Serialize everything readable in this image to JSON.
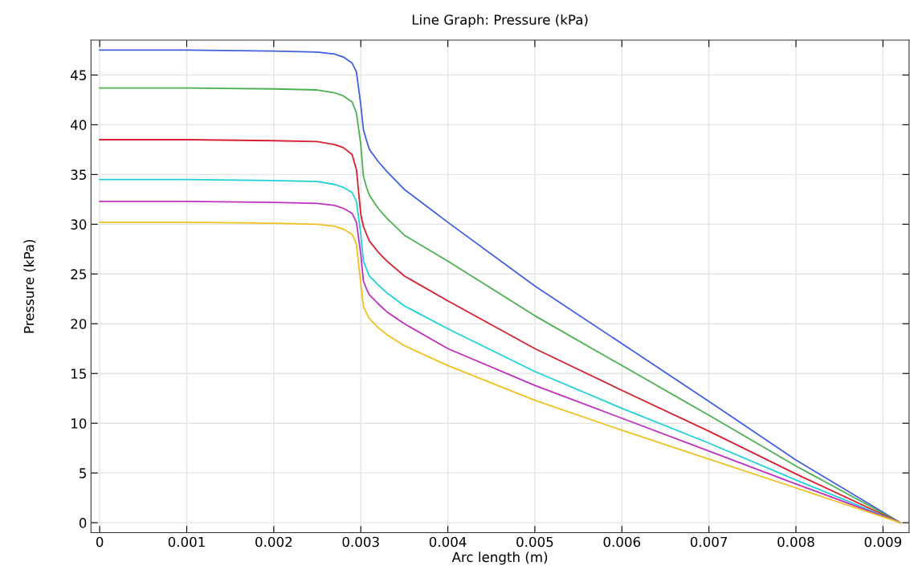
{
  "chart_data": {
    "type": "line",
    "title": "Line Graph: Pressure (kPa)",
    "xlabel": "Arc length (m)",
    "ylabel": "Pressure (kPa)",
    "x": [
      0,
      0.001,
      0.002,
      0.0025,
      0.0027,
      0.0028,
      0.0029,
      0.00295,
      0.003,
      0.00303,
      0.00307,
      0.0031,
      0.0032,
      0.0033,
      0.0035,
      0.004,
      0.005,
      0.006,
      0.007,
      0.008,
      0.0092
    ],
    "series": [
      {
        "color": "#4060e0",
        "values": [
          47.5,
          47.5,
          47.4,
          47.3,
          47.1,
          46.8,
          46.2,
          45.3,
          42,
          39.5,
          38.3,
          37.5,
          36.3,
          35.3,
          33.5,
          30.2,
          23.8,
          18.0,
          12.2,
          6.3,
          0
        ]
      },
      {
        "color": "#4cb050",
        "values": [
          43.7,
          43.7,
          43.6,
          43.5,
          43.2,
          42.9,
          42.3,
          41.2,
          38,
          34.8,
          33.6,
          32.9,
          31.6,
          30.6,
          28.9,
          26.3,
          20.8,
          15.8,
          10.8,
          5.7,
          0
        ]
      },
      {
        "color": "#d62030",
        "values": [
          38.5,
          38.5,
          38.4,
          38.3,
          38.0,
          37.7,
          37.0,
          35.5,
          31,
          29.8,
          28.9,
          28.3,
          27.2,
          26.3,
          24.8,
          22.3,
          17.5,
          13.3,
          9.2,
          4.9,
          0
        ]
      },
      {
        "color": "#20d0d8",
        "values": [
          34.5,
          34.5,
          34.4,
          34.3,
          34.0,
          33.7,
          33.2,
          32.3,
          29,
          26.3,
          25.4,
          24.8,
          23.9,
          23.1,
          21.8,
          19.5,
          15.2,
          11.5,
          8.0,
          4.3,
          0
        ]
      },
      {
        "color": "#c030c0",
        "values": [
          32.3,
          32.3,
          32.2,
          32.1,
          31.9,
          31.6,
          31.1,
          30.2,
          27,
          24.3,
          23.4,
          22.9,
          22.0,
          21.2,
          20.0,
          17.5,
          13.8,
          10.5,
          7.2,
          3.9,
          0
        ]
      },
      {
        "color": "#f0c020",
        "values": [
          30.2,
          30.2,
          30.1,
          30.0,
          29.8,
          29.5,
          29.0,
          28.0,
          24,
          21.7,
          21.0,
          20.5,
          19.6,
          18.9,
          17.8,
          15.8,
          12.3,
          9.3,
          6.4,
          3.5,
          0
        ]
      }
    ],
    "xlim": [
      -0.0001,
      0.0093
    ],
    "ylim": [
      -1,
      48.5
    ],
    "xticks": [
      0,
      0.001,
      0.002,
      0.003,
      0.004,
      0.005,
      0.006,
      0.007,
      0.008,
      0.009
    ],
    "yticks": [
      0,
      5,
      10,
      15,
      20,
      25,
      30,
      35,
      40,
      45
    ],
    "grid": true,
    "marker": "none",
    "line_style": "solid"
  }
}
